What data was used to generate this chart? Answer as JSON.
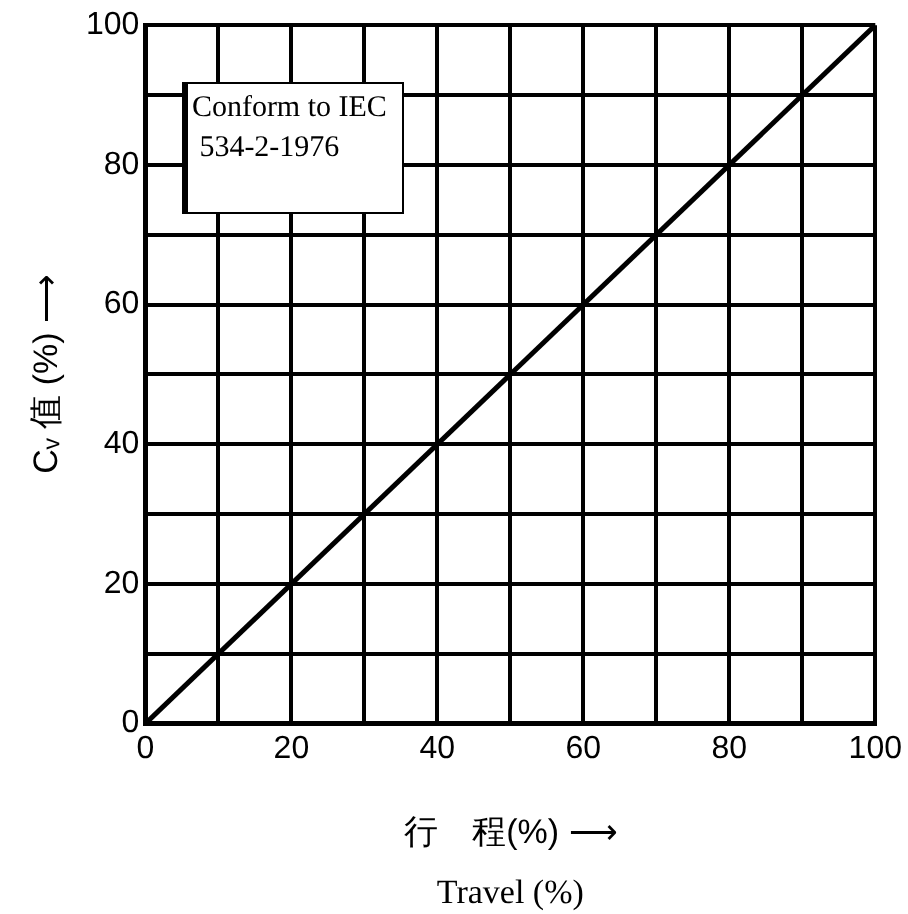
{
  "chart_data": {
    "type": "line",
    "xlabel": "行　程(%) ⟶\nTravel (%)",
    "ylabel": "Cᵥ 值 (%) ⟶",
    "annotations": [
      "Conform to IEC\n 534-2-1976"
    ],
    "series": [
      {
        "color": "#000000",
        "x": [
          0,
          100
        ],
        "values": [
          0,
          100
        ]
      }
    ],
    "xlim": [
      0,
      100
    ],
    "ylim": [
      0,
      100
    ],
    "xticks": [
      0,
      {
        "value": 10,
        "label": null
      },
      20,
      {
        "value": 30,
        "label": null
      },
      40,
      {
        "value": 50,
        "label": null
      },
      60,
      {
        "value": 70,
        "label": null
      },
      80,
      {
        "value": 90,
        "label": null
      },
      100
    ],
    "yticks": [
      0,
      {
        "value": 10,
        "label": null
      },
      20,
      {
        "value": 30,
        "label": null
      },
      40,
      {
        "value": 50,
        "label": null
      },
      60,
      {
        "value": 70,
        "label": null
      },
      80,
      {
        "value": 90,
        "label": null
      },
      100
    ],
    "grid": true,
    "marker": "none",
    "line_style": "solid",
    "legend": false
  }
}
